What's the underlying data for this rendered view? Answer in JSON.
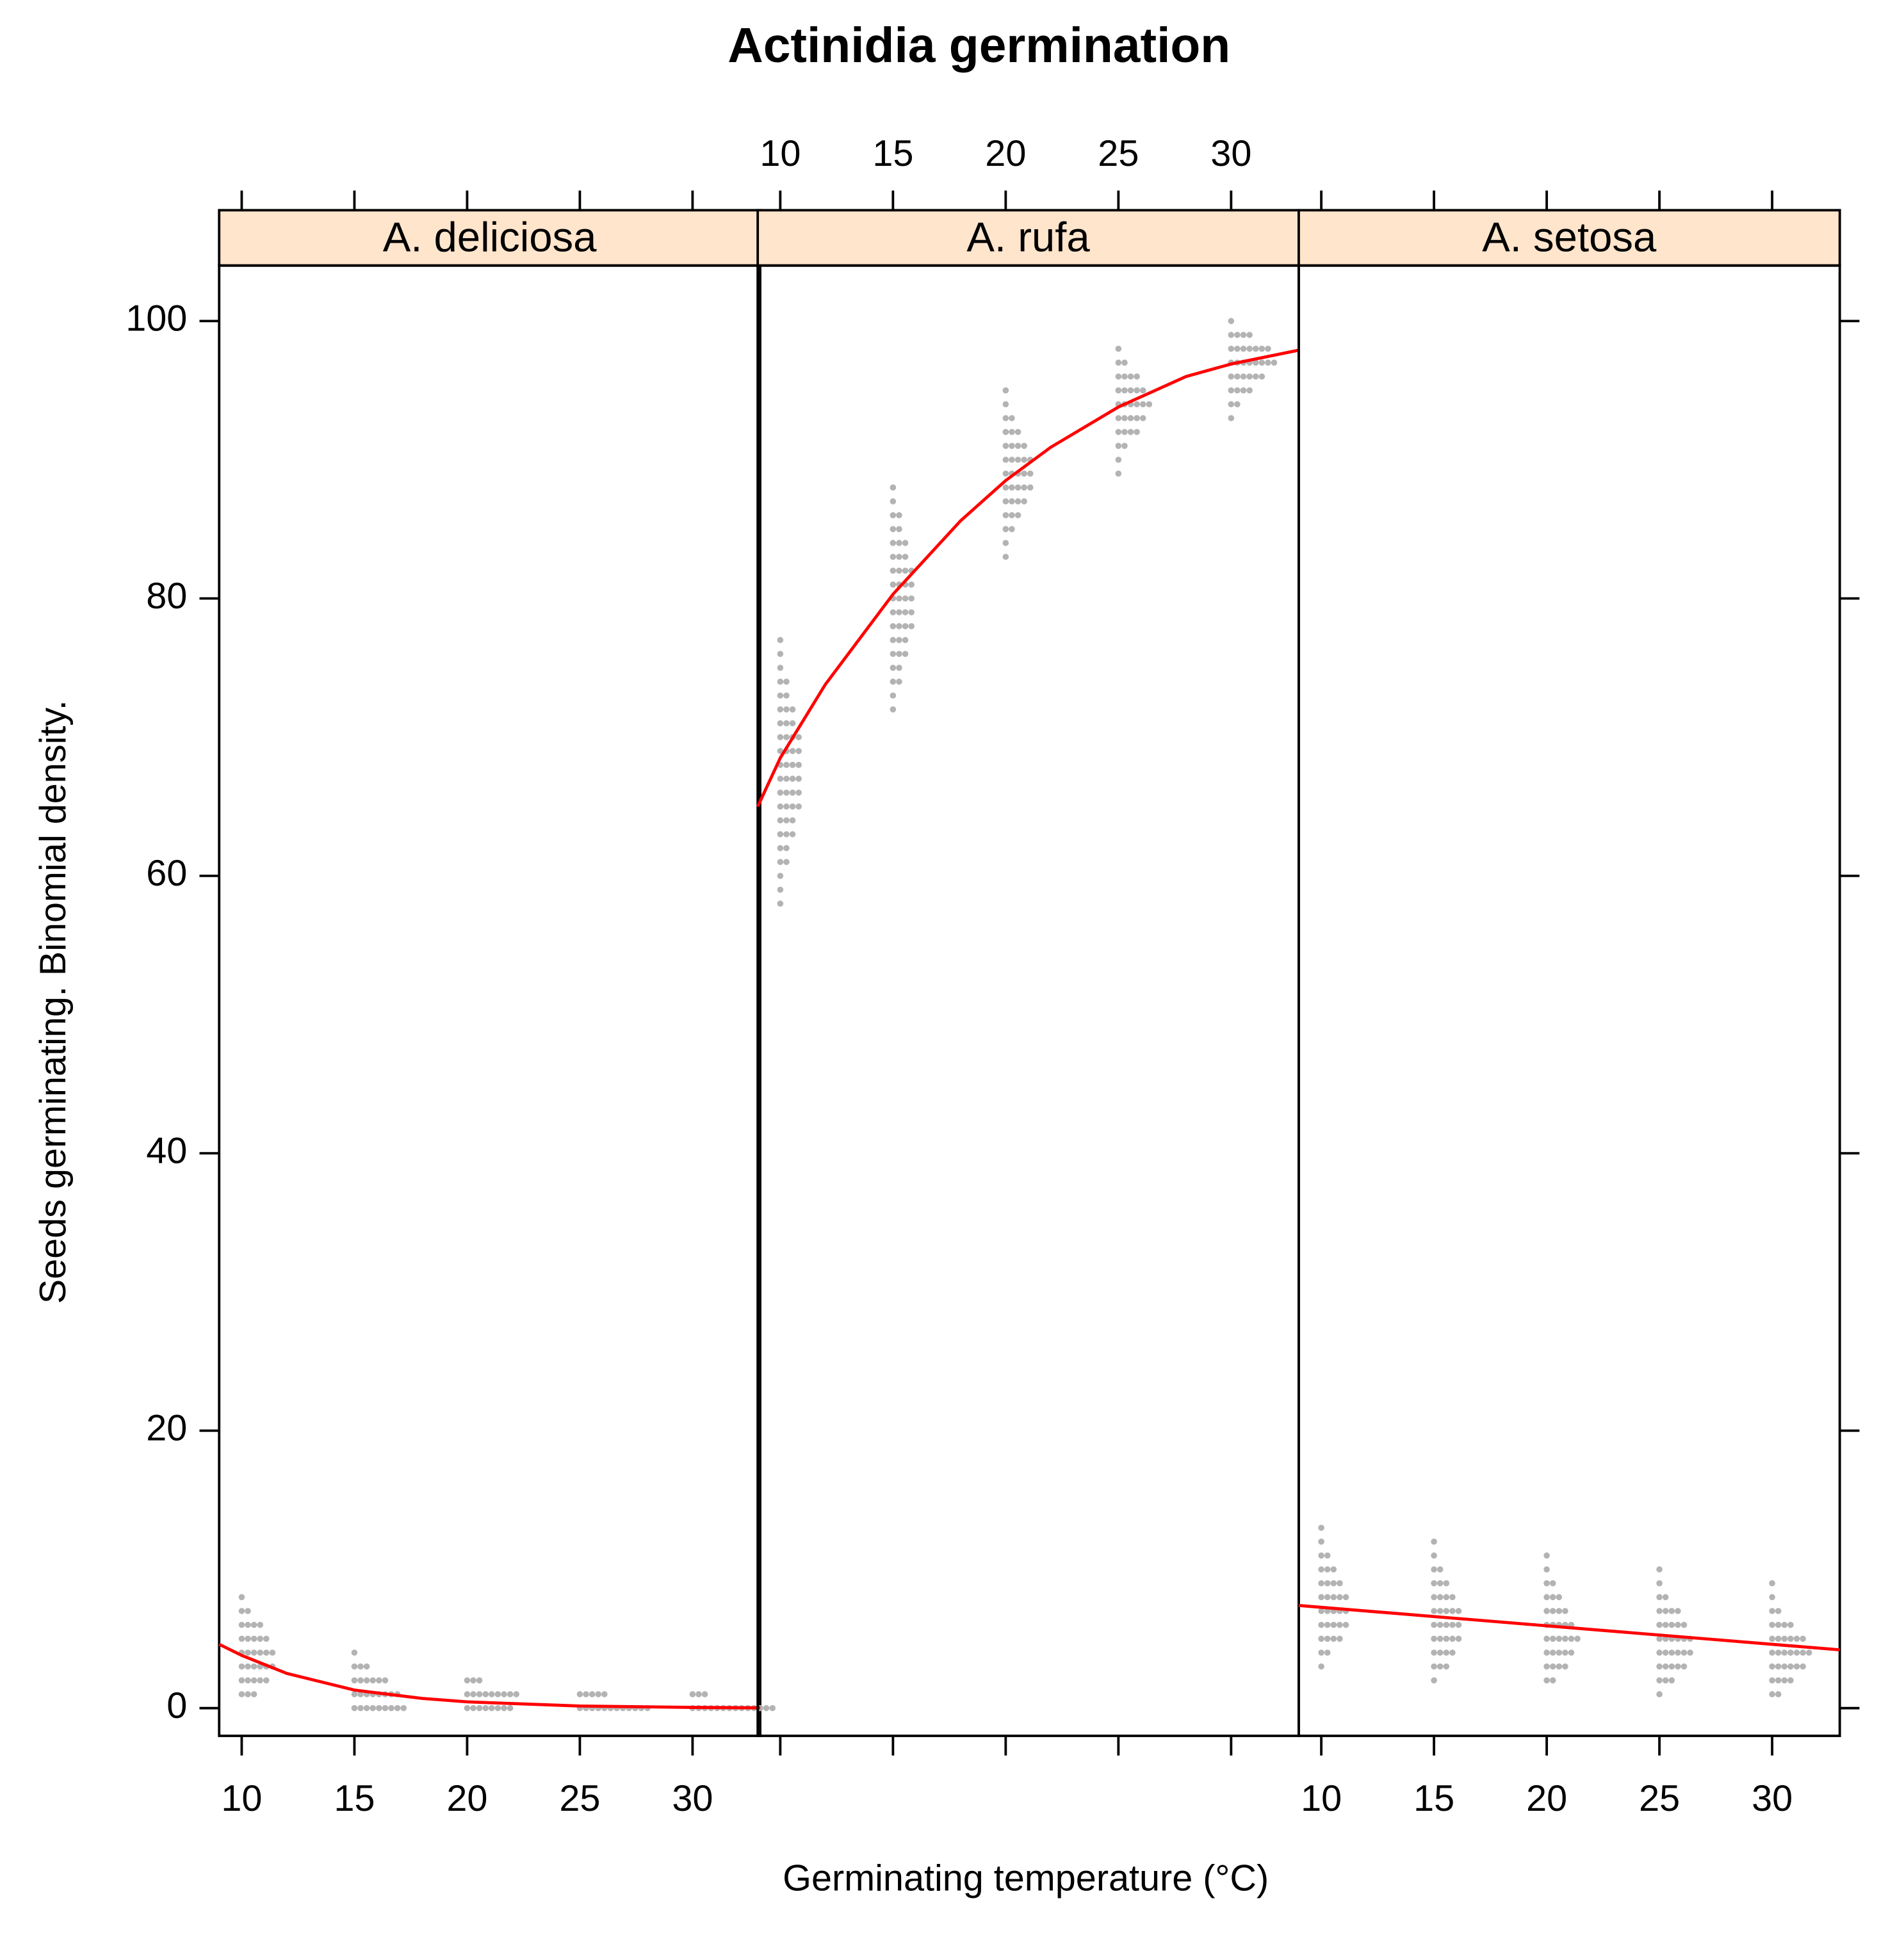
{
  "chart_data": {
    "type": "lattice",
    "title": "Actinidia germination",
    "xlabel": "Germinating temperature (°C)",
    "ylabel": "Seeds germinating.  Binomial density.",
    "xlim": [
      9,
      33
    ],
    "xticks": [
      10,
      15,
      20,
      25,
      30
    ],
    "ylim": [
      -2,
      104
    ],
    "yticks": [
      0,
      20,
      40,
      60,
      80,
      100
    ],
    "point_color": "#b3b3b3",
    "curve_color": "#ff0000",
    "strip_color": "#ffe5cc",
    "panels": [
      {
        "name": "A. deliciosa",
        "curve": {
          "x": [
            9,
            10,
            12,
            15,
            18,
            20,
            25,
            30,
            33
          ],
          "y": [
            4.6,
            3.8,
            2.5,
            1.3,
            0.7,
            0.45,
            0.15,
            0.05,
            0.02
          ]
        },
        "groups": [
          {
            "x": 10,
            "y": [
              1,
              2,
              3,
              4,
              5,
              6,
              7,
              8
            ],
            "density": [
              3,
              5,
              6,
              6,
              5,
              4,
              2,
              1
            ]
          },
          {
            "x": 15,
            "y": [
              0,
              1,
              2,
              3,
              4
            ],
            "density": [
              9,
              8,
              6,
              3,
              1
            ]
          },
          {
            "x": 20,
            "y": [
              0,
              1,
              2
            ],
            "density": [
              8,
              9,
              3
            ]
          },
          {
            "x": 25,
            "y": [
              0,
              1
            ],
            "density": [
              12,
              5
            ]
          },
          {
            "x": 30,
            "y": [
              0,
              1
            ],
            "density": [
              14,
              3
            ]
          }
        ]
      },
      {
        "name": "A. rufa",
        "curve": {
          "x": [
            9,
            10,
            12,
            15,
            18,
            20,
            22,
            25,
            28,
            30,
            33
          ],
          "y": [
            65,
            68.5,
            73.8,
            80.3,
            85.6,
            88.5,
            90.9,
            93.8,
            96,
            96.9,
            97.9
          ]
        },
        "groups": [
          {
            "x": 10,
            "y": [
              58,
              59,
              60,
              61,
              62,
              63,
              64,
              65,
              66,
              67,
              68,
              69,
              70,
              71,
              72,
              73,
              74,
              75,
              76,
              77
            ],
            "density": [
              1,
              1,
              1,
              2,
              2,
              3,
              3,
              4,
              4,
              4,
              4,
              4,
              4,
              3,
              3,
              2,
              2,
              1,
              1,
              1
            ]
          },
          {
            "x": 15,
            "y": [
              72,
              73,
              74,
              75,
              76,
              77,
              78,
              79,
              80,
              81,
              82,
              83,
              84,
              85,
              86,
              87,
              88
            ],
            "density": [
              1,
              1,
              2,
              2,
              3,
              3,
              4,
              4,
              4,
              4,
              4,
              3,
              3,
              2,
              2,
              1,
              1
            ]
          },
          {
            "x": 20,
            "y": [
              83,
              84,
              85,
              86,
              87,
              88,
              89,
              90,
              91,
              92,
              93,
              94,
              95
            ],
            "density": [
              1,
              1,
              2,
              3,
              4,
              5,
              5,
              5,
              4,
              3,
              2,
              1,
              1
            ]
          },
          {
            "x": 25,
            "y": [
              89,
              90,
              91,
              92,
              93,
              94,
              95,
              96,
              97,
              98
            ],
            "density": [
              1,
              1,
              2,
              4,
              5,
              6,
              5,
              4,
              2,
              1
            ]
          },
          {
            "x": 30,
            "y": [
              93,
              94,
              95,
              96,
              97,
              98,
              99,
              100
            ],
            "density": [
              1,
              2,
              4,
              6,
              8,
              7,
              4,
              1
            ]
          }
        ]
      },
      {
        "name": "A. setosa",
        "curve": {
          "x": [
            9,
            33
          ],
          "y": [
            7.4,
            4.2
          ]
        },
        "groups": [
          {
            "x": 10,
            "y": [
              3,
              4,
              5,
              6,
              7,
              8,
              9,
              10,
              11,
              12,
              13
            ],
            "density": [
              1,
              2,
              4,
              5,
              5,
              5,
              4,
              3,
              2,
              1,
              1
            ]
          },
          {
            "x": 15,
            "y": [
              2,
              3,
              4,
              5,
              6,
              7,
              8,
              9,
              10,
              11,
              12
            ],
            "density": [
              1,
              3,
              4,
              5,
              5,
              5,
              4,
              3,
              2,
              1,
              1
            ]
          },
          {
            "x": 20,
            "y": [
              2,
              3,
              4,
              5,
              6,
              7,
              8,
              9,
              10,
              11
            ],
            "density": [
              2,
              4,
              5,
              6,
              5,
              4,
              3,
              2,
              1,
              1
            ]
          },
          {
            "x": 25,
            "y": [
              1,
              2,
              3,
              4,
              5,
              6,
              7,
              8,
              9,
              10
            ],
            "density": [
              1,
              3,
              5,
              6,
              6,
              5,
              4,
              2,
              1,
              1
            ]
          },
          {
            "x": 30,
            "y": [
              1,
              2,
              3,
              4,
              5,
              6,
              7,
              8,
              9
            ],
            "density": [
              2,
              4,
              6,
              7,
              6,
              4,
              2,
              1,
              1
            ]
          }
        ]
      }
    ]
  }
}
